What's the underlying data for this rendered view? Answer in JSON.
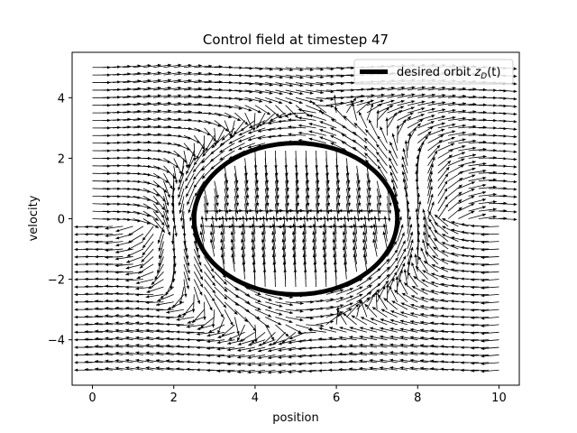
{
  "chart_data": {
    "type": "quiver",
    "title": "Control field at timestep 47",
    "xlabel": "position",
    "ylabel": "velocity",
    "xlim": [
      -0.5,
      10.5
    ],
    "ylim": [
      -5.5,
      5.5
    ],
    "xticks": [
      0,
      2,
      4,
      6,
      8,
      10
    ],
    "yticks": [
      -4,
      -2,
      0,
      2,
      4
    ],
    "xtick_labels": [
      "0",
      "2",
      "4",
      "6",
      "8",
      "10"
    ],
    "ytick_labels": [
      "−4",
      "−2",
      "0",
      "2",
      "4"
    ],
    "grid": false,
    "legend_position": "top-right",
    "field": {
      "x_range": [
        0,
        10
      ],
      "y_range": [
        -5,
        5
      ],
      "nx": 41,
      "ny": 41
    },
    "series": [
      {
        "name": "desired orbit z_D(t)",
        "type": "ellipse",
        "center": [
          5,
          0
        ],
        "semi_axes": [
          2.5,
          2.5
        ],
        "color": "#000000"
      }
    ]
  },
  "legend": {
    "label_main": "desired orbit ",
    "label_math": "z",
    "label_sub": "D",
    "label_tail": "(t)"
  }
}
